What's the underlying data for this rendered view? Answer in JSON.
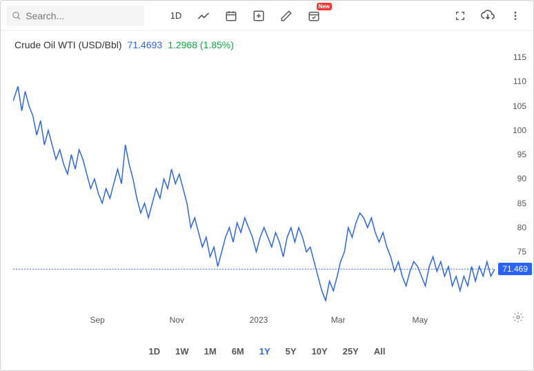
{
  "search": {
    "placeholder": "Search..."
  },
  "toolbar": {
    "interval_label": "1D",
    "badge_new": "New"
  },
  "header": {
    "symbol": "Crude Oil WTI (USD/Bbl)",
    "price": "71.4693",
    "change": "1.2968 (1.85%)"
  },
  "chart": {
    "type": "line",
    "line_color": "#2962ff",
    "line_width": 1.5,
    "background_color": "#ffffff",
    "price_tag_color": "#2962ff",
    "current_line_color": "#2962ff",
    "ylim": [
      62,
      117
    ],
    "yticks": [
      115,
      110,
      105,
      100,
      95,
      90,
      85,
      80,
      75
    ],
    "current_price": 71.469,
    "current_price_label": "71.469",
    "xticks": [
      "Sep",
      "Nov",
      "2023",
      "Mar",
      "May"
    ],
    "xtick_positions": [
      0.175,
      0.34,
      0.51,
      0.675,
      0.845
    ],
    "data": [
      [
        0.0,
        106
      ],
      [
        0.01,
        109
      ],
      [
        0.018,
        104
      ],
      [
        0.025,
        108
      ],
      [
        0.033,
        105
      ],
      [
        0.041,
        103
      ],
      [
        0.049,
        99
      ],
      [
        0.057,
        102
      ],
      [
        0.065,
        97
      ],
      [
        0.073,
        100
      ],
      [
        0.081,
        97
      ],
      [
        0.089,
        94
      ],
      [
        0.097,
        96
      ],
      [
        0.105,
        93
      ],
      [
        0.113,
        91
      ],
      [
        0.121,
        95
      ],
      [
        0.129,
        92
      ],
      [
        0.137,
        96
      ],
      [
        0.145,
        94
      ],
      [
        0.153,
        91
      ],
      [
        0.161,
        88
      ],
      [
        0.169,
        90
      ],
      [
        0.177,
        87
      ],
      [
        0.185,
        85
      ],
      [
        0.193,
        88
      ],
      [
        0.201,
        86
      ],
      [
        0.209,
        89
      ],
      [
        0.217,
        92
      ],
      [
        0.225,
        89
      ],
      [
        0.233,
        97
      ],
      [
        0.241,
        93
      ],
      [
        0.249,
        90
      ],
      [
        0.257,
        86
      ],
      [
        0.265,
        83
      ],
      [
        0.273,
        85
      ],
      [
        0.281,
        82
      ],
      [
        0.289,
        85
      ],
      [
        0.297,
        88
      ],
      [
        0.305,
        86
      ],
      [
        0.313,
        90
      ],
      [
        0.321,
        88
      ],
      [
        0.329,
        92
      ],
      [
        0.337,
        89
      ],
      [
        0.345,
        91
      ],
      [
        0.353,
        88
      ],
      [
        0.361,
        85
      ],
      [
        0.369,
        80
      ],
      [
        0.377,
        82
      ],
      [
        0.385,
        79
      ],
      [
        0.393,
        76
      ],
      [
        0.401,
        78
      ],
      [
        0.409,
        74
      ],
      [
        0.417,
        76
      ],
      [
        0.425,
        72
      ],
      [
        0.433,
        75
      ],
      [
        0.441,
        78
      ],
      [
        0.449,
        80
      ],
      [
        0.457,
        77
      ],
      [
        0.465,
        81
      ],
      [
        0.473,
        79
      ],
      [
        0.481,
        82
      ],
      [
        0.489,
        80
      ],
      [
        0.497,
        78
      ],
      [
        0.505,
        75
      ],
      [
        0.513,
        78
      ],
      [
        0.521,
        80
      ],
      [
        0.529,
        78
      ],
      [
        0.537,
        76
      ],
      [
        0.545,
        79
      ],
      [
        0.553,
        77
      ],
      [
        0.561,
        74
      ],
      [
        0.569,
        78
      ],
      [
        0.577,
        80
      ],
      [
        0.585,
        77
      ],
      [
        0.593,
        80
      ],
      [
        0.601,
        78
      ],
      [
        0.609,
        75
      ],
      [
        0.617,
        76
      ],
      [
        0.625,
        73
      ],
      [
        0.633,
        70
      ],
      [
        0.641,
        67
      ],
      [
        0.649,
        65
      ],
      [
        0.657,
        69
      ],
      [
        0.665,
        67
      ],
      [
        0.673,
        70
      ],
      [
        0.68,
        73
      ],
      [
        0.688,
        75
      ],
      [
        0.696,
        80
      ],
      [
        0.704,
        78
      ],
      [
        0.712,
        81
      ],
      [
        0.72,
        83
      ],
      [
        0.728,
        82
      ],
      [
        0.736,
        80
      ],
      [
        0.744,
        82
      ],
      [
        0.752,
        79
      ],
      [
        0.76,
        77
      ],
      [
        0.768,
        79
      ],
      [
        0.776,
        76
      ],
      [
        0.784,
        74
      ],
      [
        0.792,
        71
      ],
      [
        0.8,
        73
      ],
      [
        0.808,
        70
      ],
      [
        0.816,
        68
      ],
      [
        0.824,
        71
      ],
      [
        0.832,
        73
      ],
      [
        0.84,
        72
      ],
      [
        0.848,
        70
      ],
      [
        0.856,
        68
      ],
      [
        0.864,
        72
      ],
      [
        0.872,
        74
      ],
      [
        0.88,
        71
      ],
      [
        0.888,
        73
      ],
      [
        0.896,
        70
      ],
      [
        0.904,
        72
      ],
      [
        0.912,
        68
      ],
      [
        0.92,
        70
      ],
      [
        0.928,
        67
      ],
      [
        0.936,
        70
      ],
      [
        0.944,
        68
      ],
      [
        0.952,
        72
      ],
      [
        0.96,
        69
      ],
      [
        0.968,
        72
      ],
      [
        0.976,
        70
      ],
      [
        0.984,
        73
      ],
      [
        0.992,
        70
      ],
      [
        1.0,
        71.469
      ]
    ]
  },
  "ranges": {
    "options": [
      "1D",
      "1W",
      "1M",
      "6M",
      "1Y",
      "5Y",
      "10Y",
      "25Y",
      "All"
    ],
    "active": "1Y"
  }
}
